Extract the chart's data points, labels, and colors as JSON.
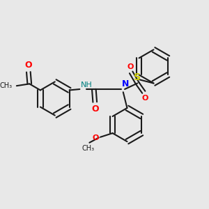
{
  "bg_color": "#e8e8e8",
  "bond_color": "#1a1a1a",
  "bond_lw": 1.5,
  "atom_colors": {
    "O": "#ff0000",
    "N": "#0000ff",
    "NH": "#008080",
    "S": "#cccc00"
  },
  "font_size": 8,
  "font_size_small": 7
}
